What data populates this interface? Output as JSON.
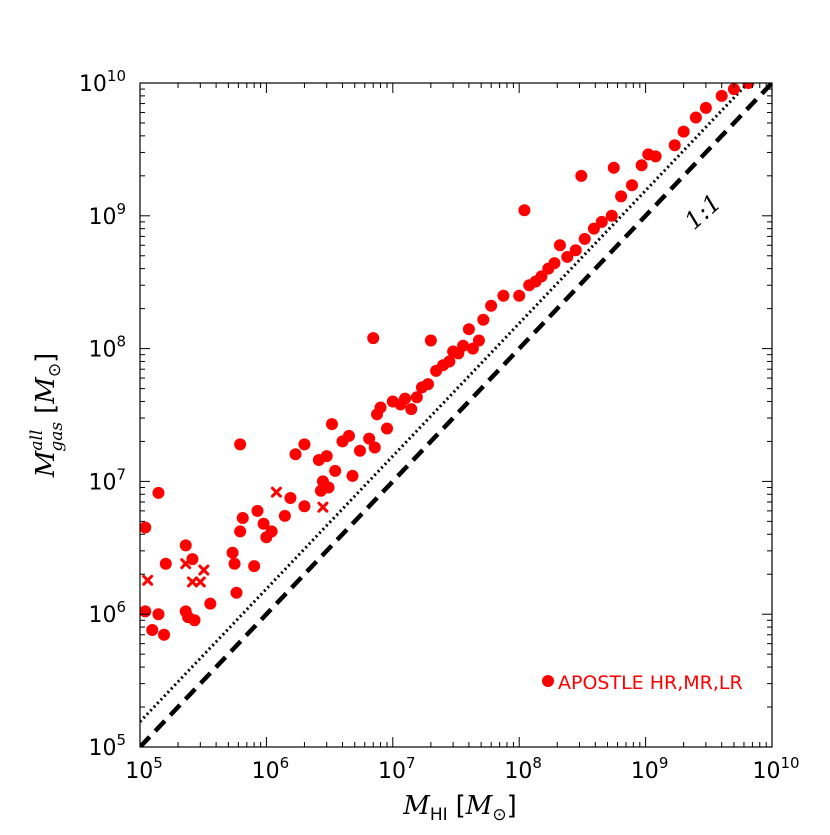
{
  "chart_data": {
    "type": "scatter",
    "title": "",
    "xscale": "log",
    "yscale": "log",
    "xlim": [
      100000,
      10000000000
    ],
    "ylim": [
      100000,
      10000000000
    ],
    "x_tick_values": [
      100000,
      1000000,
      10000000,
      100000000,
      1000000000,
      10000000000
    ],
    "y_tick_values": [
      100000,
      1000000,
      10000000,
      100000000,
      1000000000,
      10000000000
    ],
    "x_tick_labels": [
      {
        "base": "10",
        "exp": "5"
      },
      {
        "base": "10",
        "exp": "6"
      },
      {
        "base": "10",
        "exp": "7"
      },
      {
        "base": "10",
        "exp": "8"
      },
      {
        "base": "10",
        "exp": "9"
      },
      {
        "base": "10",
        "exp": "10"
      }
    ],
    "y_tick_labels": [
      {
        "base": "10",
        "exp": "5"
      },
      {
        "base": "10",
        "exp": "6"
      },
      {
        "base": "10",
        "exp": "7"
      },
      {
        "base": "10",
        "exp": "8"
      },
      {
        "base": "10",
        "exp": "9"
      },
      {
        "base": "10",
        "exp": "10"
      }
    ],
    "xlabel": {
      "symbol": "M",
      "sub": "HI",
      "unit_open": "[",
      "unit_symbol": "M",
      "unit_sub": "⊙",
      "unit_close": "]"
    },
    "ylabel": {
      "symbol": "M",
      "sup": "all",
      "sub": "gas",
      "unit_open": "[",
      "unit_symbol": "M",
      "unit_sub": "⊙",
      "unit_close": "]"
    },
    "annotation": "1:1",
    "legend": {
      "label": "APOSTLE HR,MR,LR",
      "marker": "circle",
      "color": "#ff0000",
      "location": "lower-right"
    },
    "reference_lines": [
      {
        "name": "one-to-one",
        "style": "dashed",
        "color": "#000000",
        "slope": 1,
        "offset_factor": 1
      },
      {
        "name": "offset",
        "style": "dotted",
        "color": "#000000",
        "slope": 1,
        "offset_factor": 1.55
      }
    ],
    "series": [
      {
        "name": "APOSTLE HR,MR,LR",
        "marker": "circle",
        "color": "#ff0000",
        "points": [
          [
            110000,
            4500000
          ],
          [
            110000,
            1050000
          ],
          [
            125000,
            760000
          ],
          [
            140000,
            8200000
          ],
          [
            140000,
            1000000
          ],
          [
            155000,
            700000
          ],
          [
            160000,
            2400000
          ],
          [
            230000,
            3300000
          ],
          [
            230000,
            1050000
          ],
          [
            240000,
            950000
          ],
          [
            260000,
            2600000
          ],
          [
            270000,
            900000
          ],
          [
            360000,
            1200000
          ],
          [
            540000,
            2900000
          ],
          [
            560000,
            2400000
          ],
          [
            580000,
            1450000
          ],
          [
            620000,
            19000000
          ],
          [
            620000,
            4200000
          ],
          [
            650000,
            5300000
          ],
          [
            800000,
            2300000
          ],
          [
            850000,
            6000000
          ],
          [
            950000,
            4800000
          ],
          [
            1000000,
            3800000
          ],
          [
            1100000,
            4200000
          ],
          [
            1400000,
            5500000
          ],
          [
            1550000,
            7500000
          ],
          [
            1700000,
            16000000
          ],
          [
            2000000,
            19000000
          ],
          [
            2000000,
            6500000
          ],
          [
            2600000,
            14500000
          ],
          [
            2700000,
            8500000
          ],
          [
            2800000,
            10000000
          ],
          [
            3000000,
            15500000
          ],
          [
            3100000,
            9000000
          ],
          [
            3300000,
            27000000
          ],
          [
            3500000,
            12000000
          ],
          [
            4000000,
            20000000
          ],
          [
            4500000,
            22000000
          ],
          [
            4800000,
            11000000
          ],
          [
            5500000,
            17000000
          ],
          [
            6500000,
            21000000
          ],
          [
            7000000,
            120000000
          ],
          [
            7200000,
            18000000
          ],
          [
            7500000,
            32000000
          ],
          [
            8000000,
            36000000
          ],
          [
            9000000,
            25000000
          ],
          [
            10000000,
            40000000
          ],
          [
            11500000,
            38000000
          ],
          [
            12500000,
            42000000
          ],
          [
            14000000,
            35000000
          ],
          [
            15500000,
            43000000
          ],
          [
            17000000,
            51000000
          ],
          [
            19000000,
            54000000
          ],
          [
            20000000,
            115000000
          ],
          [
            22000000,
            68000000
          ],
          [
            25000000,
            75000000
          ],
          [
            28000000,
            80000000
          ],
          [
            30000000,
            95000000
          ],
          [
            33000000,
            92000000
          ],
          [
            36000000,
            105000000
          ],
          [
            40000000,
            140000000
          ],
          [
            43000000,
            100000000
          ],
          [
            48000000,
            115000000
          ],
          [
            52000000,
            165000000
          ],
          [
            60000000,
            210000000
          ],
          [
            75000000,
            250000000
          ],
          [
            100000000,
            250000000
          ],
          [
            110000000,
            1100000000
          ],
          [
            120000000,
            300000000
          ],
          [
            135000000,
            320000000
          ],
          [
            150000000,
            350000000
          ],
          [
            170000000,
            400000000
          ],
          [
            190000000,
            440000000
          ],
          [
            210000000,
            600000000
          ],
          [
            240000000,
            490000000
          ],
          [
            280000000,
            550000000
          ],
          [
            310000000,
            2000000000
          ],
          [
            330000000,
            670000000
          ],
          [
            390000000,
            800000000
          ],
          [
            450000000,
            900000000
          ],
          [
            540000000,
            1000000000
          ],
          [
            560000000,
            2300000000
          ],
          [
            640000000,
            1400000000
          ],
          [
            780000000,
            1700000000
          ],
          [
            930000000,
            2400000000
          ],
          [
            1050000000,
            2900000000
          ],
          [
            1200000000,
            2800000000
          ],
          [
            1700000000,
            3400000000
          ],
          [
            2000000000,
            4300000000
          ],
          [
            2500000000,
            5500000000
          ],
          [
            3000000000,
            6500000000
          ],
          [
            4000000000,
            8000000000
          ],
          [
            5000000000,
            9000000000
          ],
          [
            6500000000,
            10000000000
          ]
        ]
      },
      {
        "name": "",
        "marker": "x",
        "color": "#ff0000",
        "points": [
          [
            105000,
            1050000
          ],
          [
            115000,
            1800000
          ],
          [
            230000,
            2400000
          ],
          [
            260000,
            1750000
          ],
          [
            300000,
            1750000
          ],
          [
            320000,
            2150000
          ],
          [
            1200000,
            8300000
          ],
          [
            2800000,
            6400000
          ]
        ]
      }
    ]
  }
}
